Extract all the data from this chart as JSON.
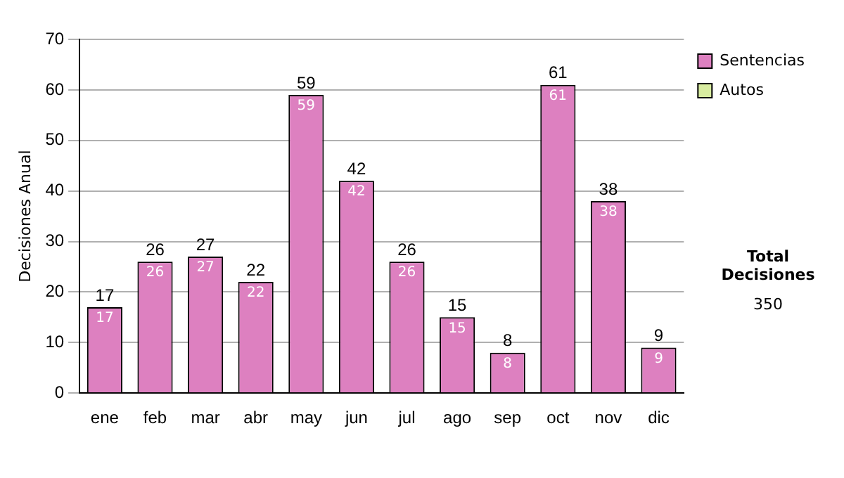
{
  "chart_data": {
    "type": "bar",
    "ylabel": "Decisiones Anual",
    "categories": [
      "ene",
      "feb",
      "mar",
      "abr",
      "may",
      "jun",
      "jul",
      "ago",
      "sep",
      "oct",
      "nov",
      "dic"
    ],
    "series": [
      {
        "name": "Sentencias",
        "color": "#dd80c0",
        "values": [
          17,
          26,
          27,
          22,
          59,
          42,
          26,
          15,
          8,
          61,
          38,
          9
        ],
        "value_labels": [
          "17",
          "26",
          "27",
          "22",
          "59",
          "42",
          "26",
          "15",
          "8",
          "61",
          "38",
          "9"
        ]
      },
      {
        "name": "Autos",
        "color": "#d8eca0",
        "values": [
          0,
          0,
          0,
          0,
          0,
          0,
          0,
          0,
          0,
          0,
          0,
          0
        ]
      }
    ],
    "stacked": true,
    "totals": [
      "17",
      "26",
      "27",
      "22",
      "59",
      "42",
      "26",
      "15",
      "8",
      "61",
      "38",
      "9"
    ],
    "ylim": [
      0,
      70
    ],
    "yticks": [
      0,
      10,
      20,
      30,
      40,
      50,
      60,
      70
    ],
    "grid": "y",
    "legend": "right",
    "annotations": [
      "Total Decisiones",
      "350"
    ]
  }
}
